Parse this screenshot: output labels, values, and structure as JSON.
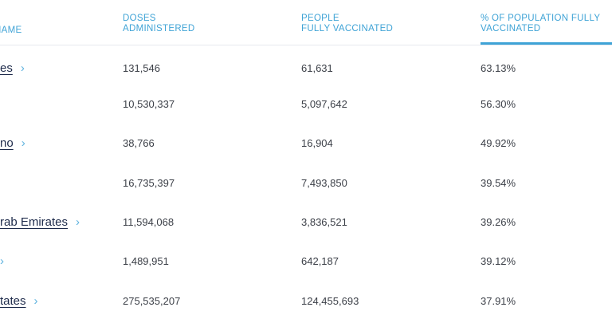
{
  "table": {
    "headers": {
      "name": "NAME",
      "doses": [
        "DOSES",
        "ADMINISTERED"
      ],
      "people": [
        "PEOPLE",
        "FULLY VACCINATED"
      ],
      "pct": [
        "% OF POPULATION FULLY",
        "VACCINATED"
      ]
    },
    "rows": [
      {
        "name": "es",
        "doses": "131,546",
        "people": "61,631",
        "pct": "63.13%"
      },
      {
        "name": "",
        "doses": "10,530,337",
        "people": "5,097,642",
        "pct": "56.30%"
      },
      {
        "name": "no",
        "doses": "38,766",
        "people": "16,904",
        "pct": "49.92%"
      },
      {
        "name": "",
        "doses": "16,735,397",
        "people": "7,493,850",
        "pct": "39.54%"
      },
      {
        "name": "rab Emirates",
        "doses": "11,594,068",
        "people": "3,836,521",
        "pct": "39.26%"
      },
      {
        "name": "",
        "doses": "1,489,951",
        "people": "642,187",
        "pct": "39.12%"
      },
      {
        "name": "tates",
        "doses": "275,535,207",
        "people": "124,455,693",
        "pct": "37.91%"
      }
    ],
    "chevron_icon": "chevron-right-icon",
    "accent_color": "#3fa3d6"
  }
}
